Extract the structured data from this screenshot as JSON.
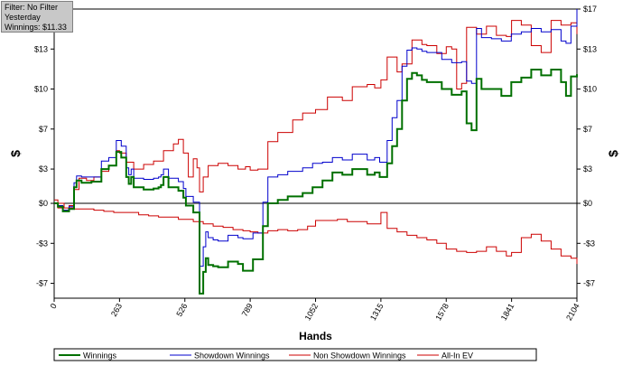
{
  "filter_box": {
    "filter": "Filter: No Filter",
    "period": "Yesterday",
    "winnings": "Winnings: $11.33"
  },
  "chart_data": {
    "type": "line",
    "xlabel": "Hands",
    "ylabel": "$",
    "ylabel_right": "$",
    "xlim": [
      0,
      2104
    ],
    "ylim": [
      -8.3,
      17
    ],
    "x_ticks": [
      0,
      263,
      526,
      789,
      1052,
      1315,
      1578,
      1841,
      2104
    ],
    "y_ticks": [
      {
        "value": 17,
        "left": "",
        "right": "$17"
      },
      {
        "value": 13.5,
        "left": "$13",
        "right": "$13"
      },
      {
        "value": 10,
        "left": "$10",
        "right": "$10"
      },
      {
        "value": 6.5,
        "left": "$7",
        "right": "$7"
      },
      {
        "value": 3,
        "left": "$3",
        "right": "$3"
      },
      {
        "value": 0,
        "left": "$0",
        "right": "$0"
      },
      {
        "value": -3.5,
        "left": "-$3",
        "right": "-$3"
      },
      {
        "value": -7,
        "left": "-$7",
        "right": "-$7"
      }
    ],
    "grid": true,
    "legend_position": "bottom",
    "series": [
      {
        "name": "Winnings",
        "color": "#007000",
        "x": [
          0,
          15,
          35,
          60,
          80,
          90,
          110,
          150,
          190,
          220,
          250,
          270,
          290,
          300,
          310,
          320,
          360,
          400,
          420,
          430,
          440,
          460,
          500,
          520,
          530,
          560,
          585,
          600,
          610,
          620,
          640,
          660,
          700,
          740,
          760,
          800,
          840,
          860,
          900,
          940,
          1000,
          1040,
          1080,
          1120,
          1160,
          1200,
          1260,
          1290,
          1310,
          1340,
          1360,
          1380,
          1400,
          1420,
          1440,
          1460,
          1480,
          1500,
          1560,
          1600,
          1640,
          1660,
          1680,
          1700,
          1720,
          1760,
          1800,
          1840,
          1880,
          1920,
          1960,
          2000,
          2040,
          2060,
          2080,
          2104
        ],
        "y": [
          0,
          -0.3,
          -0.7,
          -0.5,
          1.4,
          2.0,
          1.8,
          1.9,
          3.0,
          3.3,
          4.5,
          4.0,
          2.3,
          1.7,
          2.3,
          1.4,
          1.2,
          1.3,
          1.4,
          1.6,
          2.3,
          1.4,
          1.1,
          0.5,
          -0.2,
          -0.8,
          -7.9,
          -6.0,
          -4.8,
          -5.4,
          -5.5,
          -5.6,
          -5.1,
          -5.3,
          -5.9,
          -4.9,
          -2.0,
          0.0,
          0.3,
          0.6,
          0.9,
          1.4,
          2.0,
          2.7,
          2.5,
          3.0,
          2.5,
          2.7,
          2.3,
          3.5,
          5.0,
          6.5,
          9.0,
          10.9,
          11.4,
          11.2,
          10.8,
          10.6,
          10.0,
          9.5,
          9.8,
          7.0,
          6.4,
          10.9,
          10.0,
          10.0,
          9.4,
          10.6,
          11.0,
          11.7,
          11.2,
          11.7,
          10.6,
          9.4,
          11.1,
          11.3
        ]
      },
      {
        "name": "Showdown Winnings",
        "color": "#0000cc",
        "x": [
          0,
          15,
          35,
          60,
          80,
          90,
          110,
          150,
          190,
          220,
          250,
          270,
          290,
          300,
          310,
          320,
          360,
          400,
          420,
          430,
          440,
          460,
          500,
          520,
          530,
          560,
          585,
          600,
          610,
          620,
          640,
          660,
          700,
          740,
          760,
          800,
          840,
          860,
          900,
          940,
          1000,
          1040,
          1080,
          1120,
          1160,
          1200,
          1260,
          1290,
          1310,
          1340,
          1360,
          1380,
          1400,
          1420,
          1440,
          1460,
          1480,
          1500,
          1560,
          1600,
          1640,
          1660,
          1680,
          1700,
          1720,
          1760,
          1800,
          1840,
          1880,
          1920,
          1960,
          2000,
          2040,
          2060,
          2080,
          2104
        ],
        "y": [
          0,
          -0.2,
          -0.6,
          -0.3,
          1.8,
          2.4,
          2.3,
          2.3,
          3.7,
          4.0,
          5.5,
          5.0,
          3.1,
          2.5,
          3.0,
          2.2,
          2.1,
          2.2,
          2.3,
          2.5,
          3.0,
          2.2,
          1.9,
          1.3,
          0.6,
          0.1,
          -5.5,
          -3.8,
          -2.5,
          -3.0,
          -3.2,
          -3.3,
          -2.8,
          -3.0,
          -3.1,
          -2.6,
          0.1,
          2.3,
          2.5,
          2.8,
          3.1,
          3.5,
          3.6,
          4.0,
          3.8,
          4.3,
          3.8,
          4.0,
          3.6,
          5.5,
          7.5,
          9.0,
          12.0,
          13.4,
          13.6,
          13.5,
          13.3,
          13.2,
          12.6,
          12.3,
          12.4,
          10.7,
          10.5,
          15.3,
          14.5,
          14.4,
          14.2,
          14.8,
          15.0,
          15.3,
          15.0,
          15.2,
          14.2,
          14.0,
          15.5,
          17.0
        ]
      },
      {
        "name": "Non Showdown Winnings",
        "color": "#cc0000",
        "x": [
          0,
          40,
          80,
          120,
          160,
          200,
          240,
          263,
          300,
          340,
          380,
          420,
          460,
          500,
          526,
          560,
          600,
          640,
          680,
          720,
          760,
          789,
          820,
          860,
          900,
          940,
          980,
          1020,
          1052,
          1100,
          1140,
          1180,
          1220,
          1260,
          1315,
          1340,
          1380,
          1420,
          1460,
          1500,
          1540,
          1578,
          1620,
          1660,
          1700,
          1740,
          1780,
          1820,
          1841,
          1880,
          1920,
          1960,
          2000,
          2040,
          2080,
          2104
        ],
        "y": [
          0,
          -0.4,
          -0.5,
          -0.5,
          -0.6,
          -0.7,
          -0.8,
          -0.8,
          -0.8,
          -1.0,
          -1.1,
          -1.2,
          -1.2,
          -1.4,
          -1.4,
          -1.6,
          -1.8,
          -2.0,
          -2.1,
          -2.3,
          -2.4,
          -2.5,
          -2.6,
          -2.4,
          -2.3,
          -2.4,
          -2.3,
          -2.0,
          -1.5,
          -1.5,
          -1.4,
          -1.6,
          -1.6,
          -1.8,
          -0.8,
          -2.2,
          -2.5,
          -2.8,
          -3.0,
          -3.2,
          -3.5,
          -4.0,
          -4.2,
          -4.3,
          -4.2,
          -3.8,
          -4.2,
          -4.6,
          -4.3,
          -3.0,
          -2.7,
          -3.3,
          -4.0,
          -4.6,
          -4.8,
          -5.3
        ]
      },
      {
        "name": "All-In EV",
        "color": "#cc0000",
        "x": [
          0,
          15,
          35,
          60,
          80,
          100,
          130,
          160,
          190,
          220,
          250,
          263,
          290,
          320,
          360,
          400,
          440,
          480,
          500,
          520,
          540,
          560,
          575,
          585,
          600,
          620,
          660,
          700,
          740,
          770,
          789,
          820,
          860,
          900,
          960,
          1000,
          1052,
          1100,
          1160,
          1200,
          1260,
          1290,
          1315,
          1340,
          1380,
          1400,
          1440,
          1480,
          1500,
          1540,
          1578,
          1600,
          1620,
          1640,
          1660,
          1700,
          1740,
          1780,
          1820,
          1841,
          1880,
          1920,
          1960,
          2000,
          2040,
          2080,
          2104
        ],
        "y": [
          0.3,
          -0.4,
          -0.6,
          -0.2,
          1.2,
          2.2,
          2.0,
          2.3,
          2.8,
          3.3,
          4.6,
          4.4,
          3.6,
          3.0,
          3.4,
          3.7,
          4.6,
          5.2,
          5.6,
          4.4,
          2.3,
          3.9,
          3.1,
          1.0,
          2.3,
          3.3,
          3.5,
          3.3,
          3.0,
          3.2,
          2.9,
          3.0,
          5.4,
          6.2,
          7.3,
          7.9,
          8.2,
          9.3,
          9.0,
          10.2,
          10.4,
          10.1,
          10.8,
          12.8,
          11.5,
          12.2,
          14.3,
          13.9,
          13.8,
          13.1,
          13.7,
          13.5,
          10.0,
          10.5,
          15.4,
          14.8,
          15.5,
          14.7,
          14.6,
          16.0,
          15.6,
          13.8,
          13.2,
          16.0,
          15.6,
          15.8,
          14.8
        ]
      }
    ]
  }
}
